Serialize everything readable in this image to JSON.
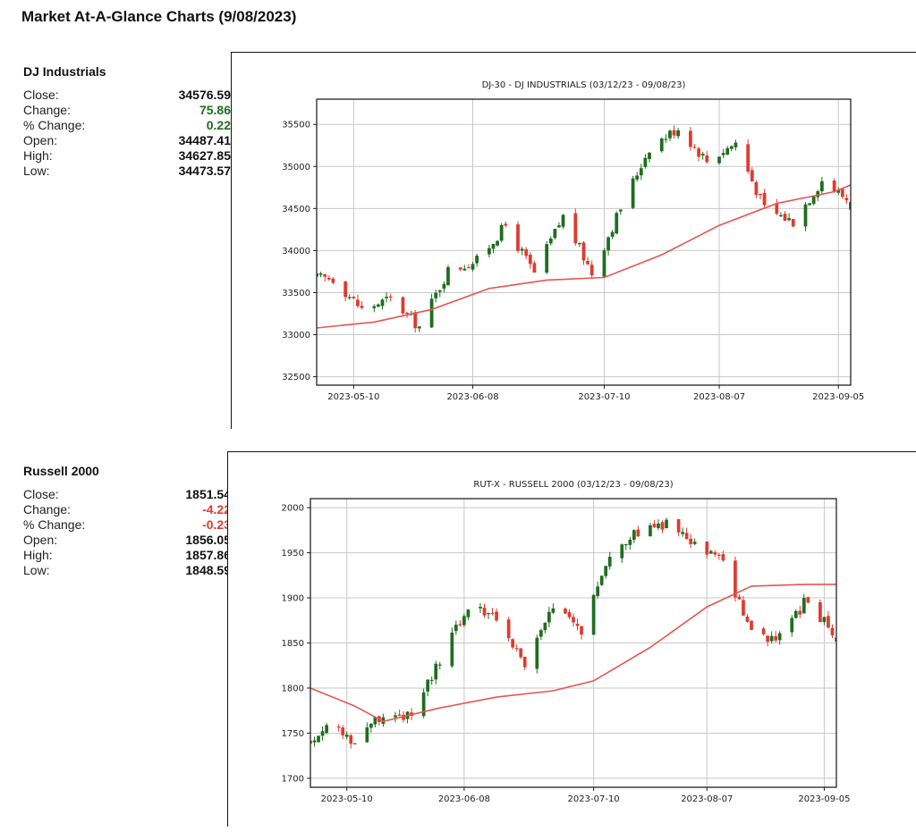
{
  "page_title": "Market At-A-Glance Charts (9/08/2023)",
  "colors": {
    "up": "#1e6e1e",
    "down": "#e03a2f",
    "ma": "#e8554f",
    "grid": "#c8c8c8"
  },
  "panels": [
    {
      "name": "DJ Industrials",
      "stats": [
        {
          "label": "Close:",
          "value": "34576.59",
          "tone": "neutral"
        },
        {
          "label": "Change:",
          "value": "75.86",
          "tone": "up"
        },
        {
          "label": "% Change:",
          "value": "0.22",
          "tone": "up"
        },
        {
          "label": "Open:",
          "value": "34487.41",
          "tone": "neutral"
        },
        {
          "label": "High:",
          "value": "34627.85",
          "tone": "neutral"
        },
        {
          "label": "Low:",
          "value": "34473.57",
          "tone": "neutral"
        }
      ]
    },
    {
      "name": "Russell 2000",
      "stats": [
        {
          "label": "Close:",
          "value": "1851.54",
          "tone": "neutral"
        },
        {
          "label": "Change:",
          "value": "-4.22",
          "tone": "down"
        },
        {
          "label": "% Change:",
          "value": "-0.23",
          "tone": "down"
        },
        {
          "label": "Open:",
          "value": "1856.05",
          "tone": "neutral"
        },
        {
          "label": "High:",
          "value": "1857.86",
          "tone": "neutral"
        },
        {
          "label": "Low:",
          "value": "1848.59",
          "tone": "neutral"
        }
      ]
    }
  ],
  "chart_data": [
    {
      "type": "candlestick",
      "title": "DJ-30 - DJ INDUSTRIALS (03/12/23 - 09/08/23)",
      "x_range": [
        "2023-05-01",
        "2023-09-08"
      ],
      "ylim": [
        32400,
        35800
      ],
      "yticks": [
        32500,
        33000,
        33500,
        34000,
        34500,
        35000,
        35500
      ],
      "xticks": [
        "2023-05-10",
        "2023-06-08",
        "2023-07-10",
        "2023-08-07",
        "2023-09-05"
      ],
      "grid": true,
      "closes_weekly": [
        [
          "2023-05-01",
          33674
        ],
        [
          "2023-05-05",
          33670
        ],
        [
          "2023-05-12",
          33300
        ],
        [
          "2023-05-19",
          33427
        ],
        [
          "2023-05-26",
          33093
        ],
        [
          "2023-06-02",
          33763
        ],
        [
          "2023-06-09",
          33877
        ],
        [
          "2023-06-16",
          34299
        ],
        [
          "2023-06-23",
          33727
        ],
        [
          "2023-06-30",
          34408
        ],
        [
          "2023-07-07",
          33734
        ],
        [
          "2023-07-14",
          34509
        ],
        [
          "2023-07-21",
          35228
        ],
        [
          "2023-07-28",
          35459
        ],
        [
          "2023-08-04",
          35066
        ],
        [
          "2023-08-11",
          35281
        ],
        [
          "2023-08-18",
          34500
        ],
        [
          "2023-08-25",
          34346
        ],
        [
          "2023-09-01",
          34837
        ],
        [
          "2023-09-08",
          34577
        ]
      ],
      "moving_average": [
        [
          "2023-05-01",
          33080
        ],
        [
          "2023-05-15",
          33150
        ],
        [
          "2023-05-29",
          33300
        ],
        [
          "2023-06-12",
          33550
        ],
        [
          "2023-06-26",
          33650
        ],
        [
          "2023-07-10",
          33680
        ],
        [
          "2023-07-24",
          33950
        ],
        [
          "2023-08-07",
          34300
        ],
        [
          "2023-08-21",
          34560
        ],
        [
          "2023-09-04",
          34700
        ],
        [
          "2023-09-08",
          34780
        ]
      ]
    },
    {
      "type": "candlestick",
      "title": "RUT-X - RUSSELL 2000 (03/12/23 - 09/08/23)",
      "x_range": [
        "2023-05-01",
        "2023-09-08"
      ],
      "ylim": [
        1690,
        2010
      ],
      "yticks": [
        1700,
        1750,
        1800,
        1850,
        1900,
        1950,
        2000
      ],
      "xticks": [
        "2023-05-10",
        "2023-06-08",
        "2023-07-10",
        "2023-08-07",
        "2023-09-05"
      ],
      "grid": true,
      "closes_weekly": [
        [
          "2023-05-01",
          1740
        ],
        [
          "2023-05-05",
          1760
        ],
        [
          "2023-05-12",
          1741
        ],
        [
          "2023-05-19",
          1773
        ],
        [
          "2023-05-26",
          1767
        ],
        [
          "2023-06-02",
          1830
        ],
        [
          "2023-06-09",
          1890
        ],
        [
          "2023-06-16",
          1880
        ],
        [
          "2023-06-23",
          1825
        ],
        [
          "2023-06-30",
          1888
        ],
        [
          "2023-07-07",
          1865
        ],
        [
          "2023-07-14",
          1950
        ],
        [
          "2023-07-21",
          1972
        ],
        [
          "2023-07-28",
          1982
        ],
        [
          "2023-08-04",
          1957
        ],
        [
          "2023-08-11",
          1940
        ],
        [
          "2023-08-18",
          1860
        ],
        [
          "2023-08-25",
          1855
        ],
        [
          "2023-09-01",
          1900
        ],
        [
          "2023-09-08",
          1852
        ]
      ],
      "moving_average": [
        [
          "2023-05-01",
          1800
        ],
        [
          "2023-05-12",
          1780
        ],
        [
          "2023-05-19",
          1763
        ],
        [
          "2023-06-02",
          1778
        ],
        [
          "2023-06-16",
          1790
        ],
        [
          "2023-06-30",
          1797
        ],
        [
          "2023-07-10",
          1808
        ],
        [
          "2023-07-24",
          1845
        ],
        [
          "2023-08-07",
          1890
        ],
        [
          "2023-08-18",
          1913
        ],
        [
          "2023-09-01",
          1915
        ],
        [
          "2023-09-08",
          1915
        ]
      ]
    }
  ]
}
